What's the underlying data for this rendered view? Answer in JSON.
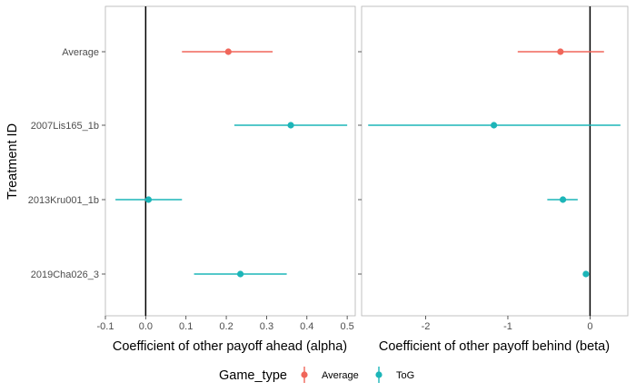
{
  "chart_data": [
    {
      "type": "scatter",
      "subtype": "point-range",
      "xlabel": "Coefficient of other payoff ahead (alpha)",
      "ylabel": "Treatment ID",
      "categories": [
        "Average",
        "2007Lis165_1b",
        "2013Kru001_1b",
        "2019Cha026_3"
      ],
      "xlim": [
        -0.1,
        0.52
      ],
      "xticks": [
        "-0.1",
        "0.0",
        "0.1",
        "0.2",
        "0.3",
        "0.4",
        "0.5"
      ],
      "xtick_values": [
        -0.1,
        0.0,
        0.1,
        0.2,
        0.3,
        0.4,
        0.5
      ],
      "reference_line_x": 0,
      "points": [
        {
          "category": "Average",
          "game_type": "Average",
          "estimate": 0.205,
          "lower": 0.09,
          "upper": 0.315
        },
        {
          "category": "2007Lis165_1b",
          "game_type": "ToG",
          "estimate": 0.36,
          "lower": 0.22,
          "upper": 0.5
        },
        {
          "category": "2013Kru001_1b",
          "game_type": "ToG",
          "estimate": 0.007,
          "lower": -0.075,
          "upper": 0.09
        },
        {
          "category": "2019Cha026_3",
          "game_type": "ToG",
          "estimate": 0.235,
          "lower": 0.12,
          "upper": 0.35
        }
      ]
    },
    {
      "type": "scatter",
      "subtype": "point-range",
      "xlabel": "Coefficient of other payoff behind (beta)",
      "categories": [
        "Average",
        "2007Lis165_1b",
        "2013Kru001_1b",
        "2019Cha026_3"
      ],
      "xlim": [
        -2.78,
        0.46
      ],
      "xticks": [
        "-2",
        "-1",
        "0"
      ],
      "xtick_values": [
        -2,
        -1,
        0
      ],
      "reference_line_x": 0,
      "points": [
        {
          "category": "Average",
          "game_type": "Average",
          "estimate": -0.36,
          "lower": -0.88,
          "upper": 0.17
        },
        {
          "category": "2007Lis165_1b",
          "game_type": "ToG",
          "estimate": -1.17,
          "lower": -2.7,
          "upper": 0.37
        },
        {
          "category": "2013Kru001_1b",
          "game_type": "ToG",
          "estimate": -0.33,
          "lower": -0.52,
          "upper": -0.15
        },
        {
          "category": "2019Cha026_3",
          "game_type": "ToG",
          "estimate": -0.05,
          "lower": -0.07,
          "upper": -0.03
        }
      ]
    }
  ],
  "legend": {
    "title": "Game_type",
    "placement": "bottom",
    "items": [
      {
        "label": "Average",
        "color": "#f0665a"
      },
      {
        "label": "ToG",
        "color": "#1cb5b8"
      }
    ]
  },
  "colors": {
    "Average": "#f0665a",
    "ToG": "#1cb5b8"
  }
}
